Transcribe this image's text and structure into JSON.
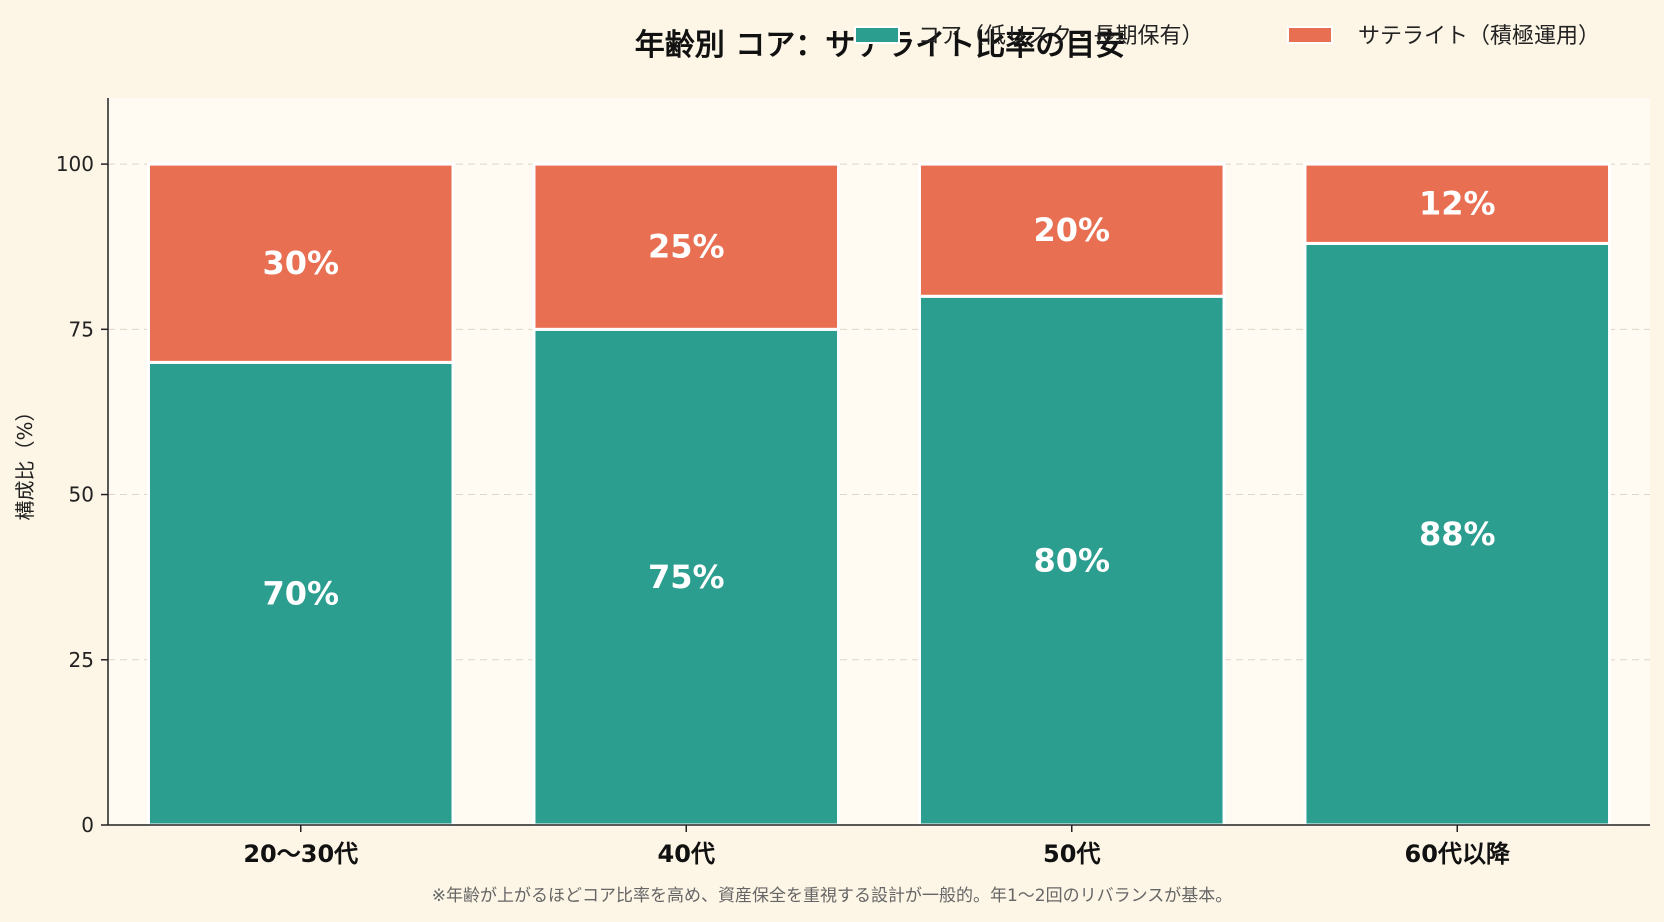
{
  "chart_data": {
    "type": "bar",
    "stacked": true,
    "title": "年齢別 コア：サテライト比率の目安",
    "ylabel": "構成比（%）",
    "xlabel": "",
    "categories": [
      "20〜30代",
      "40代",
      "50代",
      "60代以降"
    ],
    "series": [
      {
        "name": "コア（低リスク・長期保有）",
        "values": [
          70,
          75,
          80,
          88
        ],
        "color": "#2c9e8f"
      },
      {
        "name": "サテライト（積極運用）",
        "values": [
          30,
          25,
          20,
          12
        ],
        "color": "#e86f52"
      }
    ],
    "data_labels": [
      [
        "70%",
        "75%",
        "80%",
        "88%"
      ],
      [
        "30%",
        "25%",
        "20%",
        "12%"
      ]
    ],
    "ylim": [
      0,
      110
    ],
    "yticks": [
      0,
      25,
      50,
      75,
      100
    ],
    "grid": "y-dashed",
    "legend_position": "top-right"
  },
  "footnote": "※年齢が上がるほどコア比率を高め、資産保全を重視する設計が一般的。年1〜2回のリバランスが基本。",
  "colors": {
    "background": "#fdf6e6",
    "plot_background": "#fffbf2",
    "core": "#2c9e8f",
    "satellite": "#e86f52"
  }
}
